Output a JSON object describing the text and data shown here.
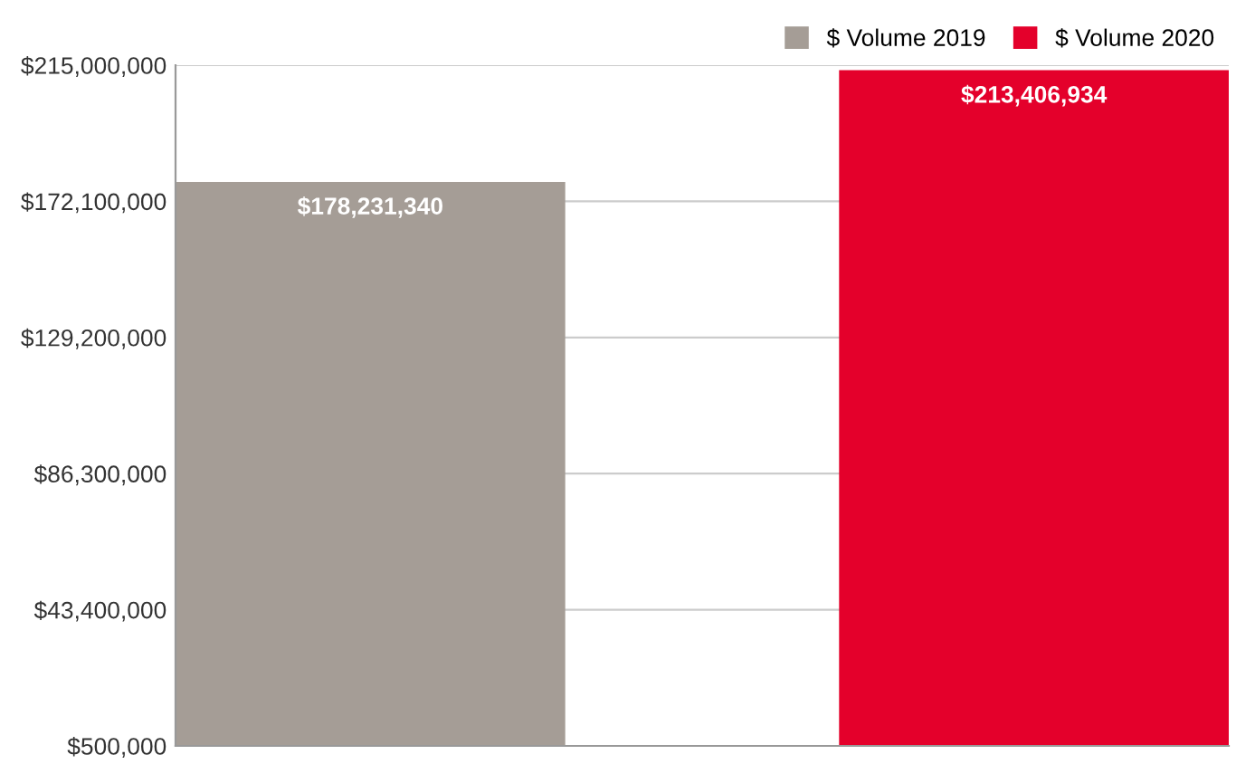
{
  "chart_data": {
    "type": "bar",
    "categories": [
      null
    ],
    "series": [
      {
        "name": "$ Volume 2019",
        "color": "#a59d96",
        "values": [
          178231340
        ],
        "value_labels": [
          "$178,231,340"
        ]
      },
      {
        "name": "$ Volume 2020",
        "color": "#e4002b",
        "values": [
          213406934
        ],
        "value_labels": [
          "$213,406,934"
        ]
      }
    ],
    "ylim": [
      500000,
      215000000
    ],
    "yticks": [
      {
        "value": 500000,
        "label": "$500,000"
      },
      {
        "value": 43400000,
        "label": "$43,400,000"
      },
      {
        "value": 86300000,
        "label": "$86,300,000"
      },
      {
        "value": 129200000,
        "label": "$129,200,000"
      },
      {
        "value": 172100000,
        "label": "$172,100,000"
      },
      {
        "value": 215000000,
        "label": "$215,000,000"
      }
    ],
    "grid": "y",
    "legend": "top right"
  }
}
